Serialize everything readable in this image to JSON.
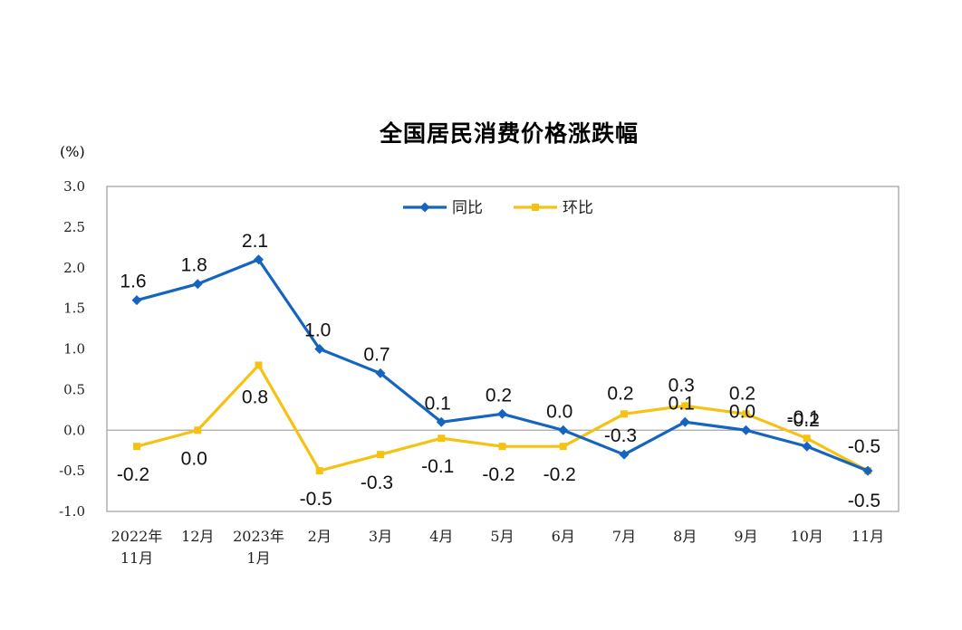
{
  "chart_data": {
    "type": "line",
    "title": "全国居民消费价格涨跌幅",
    "ylabel": "(%)",
    "ylim": [
      -1.0,
      3.0
    ],
    "yticks": [
      "3.0",
      "2.5",
      "2.0",
      "1.5",
      "1.0",
      "0.5",
      "0.0",
      "-0.5",
      "-1.0"
    ],
    "categories": [
      [
        "2022年",
        "11月"
      ],
      [
        "12月"
      ],
      [
        "2023年",
        "1月"
      ],
      [
        "2月"
      ],
      [
        "3月"
      ],
      [
        "4月"
      ],
      [
        "5月"
      ],
      [
        "6月"
      ],
      [
        "7月"
      ],
      [
        "8月"
      ],
      [
        "9月"
      ],
      [
        "10月"
      ],
      [
        "11月"
      ]
    ],
    "legend_position": "top-center",
    "series": [
      {
        "name": "同比",
        "color": "#1565C0",
        "marker": "diamond",
        "values": [
          1.6,
          1.8,
          2.1,
          1.0,
          0.7,
          0.1,
          0.2,
          0.0,
          -0.3,
          0.1,
          0.0,
          -0.2,
          -0.5
        ],
        "labels": [
          "1.6",
          "1.8",
          "2.1",
          "1.0",
          "0.7",
          "0.1",
          "0.2",
          "0.0",
          "-0.3",
          "0.1",
          "0.0",
          "-0.2",
          "-0.5"
        ]
      },
      {
        "name": "环比",
        "color": "#F5C211",
        "marker": "square",
        "values": [
          -0.2,
          0.0,
          0.8,
          -0.5,
          -0.3,
          -0.1,
          -0.2,
          -0.2,
          0.2,
          0.3,
          0.2,
          -0.1,
          -0.5
        ],
        "labels": [
          "-0.2",
          "0.0",
          "0.8",
          "-0.5",
          "-0.3",
          "-0.1",
          "-0.2",
          "-0.2",
          "0.2",
          "0.3",
          "0.2",
          "-0.1",
          "-0.5"
        ]
      }
    ]
  }
}
